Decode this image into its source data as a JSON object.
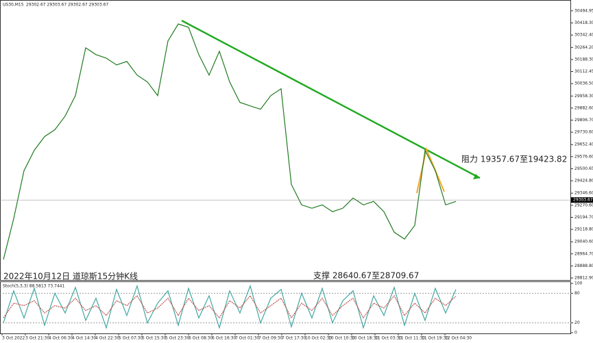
{
  "chart_data": [
    {
      "type": "line",
      "title": "US30,M15",
      "subtitle": "29302.67 29303.67 29302.67 29303.67",
      "series": [
        {
          "name": "US30",
          "color": "#1f7a1f",
          "values": [
            28929,
            29187,
            29488,
            29617,
            29703,
            29746,
            29832,
            29961,
            30262,
            30219,
            30197,
            30154,
            30176,
            30090,
            30047,
            29961,
            30305,
            30412,
            30391,
            30219,
            30090,
            30240,
            30047,
            29918,
            29896,
            29875,
            29961,
            30004,
            29402,
            29273,
            29252,
            29273,
            29230,
            29252,
            29316,
            29273,
            29295,
            29230,
            29101,
            29058,
            29144,
            29617,
            29488,
            29273,
            29295
          ]
        }
      ],
      "ylim": [
        28800,
        30550
      ],
      "yticks": [
        {
          "value": 30494.95,
          "label": "30494.95"
        },
        {
          "value": 30418.3,
          "label": "30418.30"
        },
        {
          "value": 30342.4,
          "label": "30342.40"
        },
        {
          "value": 30264.2,
          "label": "30264.20"
        },
        {
          "value": 30188.3,
          "label": "30188.30"
        },
        {
          "value": 30112.45,
          "label": "30112.45"
        },
        {
          "value": 30036.5,
          "label": "30036.50"
        },
        {
          "value": 29958.3,
          "label": "29958.30"
        },
        {
          "value": 29882.6,
          "label": "29882.60"
        },
        {
          "value": 29806.7,
          "label": "29806.70"
        },
        {
          "value": 29730.6,
          "label": "29730.60"
        },
        {
          "value": 29652.4,
          "label": "29652.40"
        },
        {
          "value": 29576.6,
          "label": "29576.60"
        },
        {
          "value": 29500.65,
          "label": "29500.65"
        },
        {
          "value": 29424.8,
          "label": "29424.80"
        },
        {
          "value": 29346.6,
          "label": "29346.60"
        },
        {
          "value": 29270.6,
          "label": "29270.60"
        },
        {
          "value": 29194.7,
          "label": "29194.70"
        },
        {
          "value": 29118.8,
          "label": "29118.80"
        },
        {
          "value": 29040.6,
          "label": "29040.60"
        },
        {
          "value": 28964.7,
          "label": "28964.70"
        },
        {
          "value": 28888.8,
          "label": "28888.80"
        },
        {
          "value": 28812.9,
          "label": "28812.90"
        }
      ],
      "current_price": 29303.67,
      "annotations": [
        "阻力 19357.67至19423.82",
        "支撑 28640.67至28709.67",
        "2022年10月12日 道琼斯15分钟K线"
      ]
    },
    {
      "type": "line",
      "title": "Stoch(5,3,3) 88.5813 73.7441",
      "series": [
        {
          "name": "main",
          "color": "#3fa7a0",
          "values": [
            20,
            85,
            30,
            90,
            15,
            80,
            40,
            92,
            25,
            70,
            10,
            88,
            35,
            95,
            20,
            60,
            85,
            15,
            90,
            30,
            75,
            10,
            85,
            40,
            95,
            20,
            70,
            88,
            12,
            80,
            30,
            90,
            20,
            65,
            85,
            10,
            75,
            35,
            92,
            15,
            80,
            25,
            90,
            40,
            88
          ]
        },
        {
          "name": "signal",
          "color": "#c0504d",
          "values": [
            30,
            60,
            55,
            65,
            40,
            55,
            50,
            70,
            45,
            55,
            35,
            65,
            55,
            75,
            40,
            50,
            70,
            35,
            70,
            45,
            55,
            30,
            65,
            50,
            75,
            40,
            55,
            70,
            30,
            60,
            45,
            70,
            35,
            55,
            70,
            30,
            60,
            50,
            75,
            35,
            60,
            40,
            70,
            55,
            74
          ]
        }
      ],
      "ylim": [
        0,
        100
      ],
      "yticks": [
        100,
        80,
        20,
        0
      ]
    },
    {
      "x_labels": [
        "3 Oct 2022",
        "3 Oct 21:30",
        "4 Oct 06:30",
        "4 Oct 14:30",
        "4 Oct 22:30",
        "5 Oct 07:30",
        "5 Oct 15:30",
        "5 Oct 23:30",
        "6 Oct 08:30",
        "6 Oct 16:30",
        "7 Oct 01:30",
        "7 Oct 09:30",
        "7 Oct 17:30",
        "10 Oct 02:30",
        "10 Oct 10:30",
        "10 Oct 18:30",
        "11 Oct 03:30",
        "11 Oct 11:30",
        "11 Oct 19:30",
        "12 Oct 04:30"
      ]
    }
  ]
}
